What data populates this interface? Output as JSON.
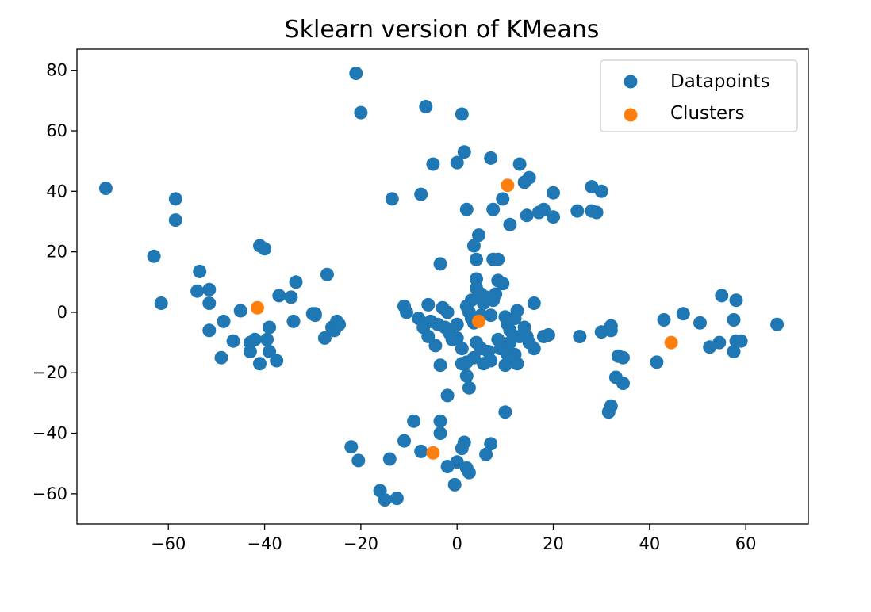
{
  "chart_data": {
    "type": "scatter",
    "title": "Sklearn version of KMeans",
    "xlabel": "",
    "ylabel": "",
    "xlim": [
      -79,
      73
    ],
    "ylim": [
      -70,
      87
    ],
    "xticks": [
      -60,
      -40,
      -20,
      0,
      20,
      40,
      60
    ],
    "yticks": [
      -60,
      -40,
      -20,
      0,
      20,
      40,
      60,
      80
    ],
    "xtick_labels": [
      "−60",
      "−40",
      "−20",
      "0",
      "20",
      "40",
      "60"
    ],
    "ytick_labels": [
      "−60",
      "−40",
      "−20",
      "0",
      "20",
      "40",
      "60",
      "80"
    ],
    "grid": false,
    "legend": {
      "position": "top-right",
      "entries": [
        "Datapoints",
        "Clusters"
      ]
    },
    "series": [
      {
        "name": "Datapoints",
        "color": "#1f77b4",
        "points": [
          [
            -21,
            79
          ],
          [
            -20,
            66
          ],
          [
            -6.5,
            68
          ],
          [
            1,
            65.5
          ],
          [
            1.5,
            53
          ],
          [
            7,
            51
          ],
          [
            -5,
            49
          ],
          [
            0,
            49.5
          ],
          [
            13,
            49
          ],
          [
            15,
            44.5
          ],
          [
            14,
            43
          ],
          [
            20,
            39.5
          ],
          [
            28,
            41.5
          ],
          [
            30,
            40
          ],
          [
            25,
            33.5
          ],
          [
            28,
            33.5
          ],
          [
            29,
            33
          ],
          [
            18,
            34
          ],
          [
            17,
            33
          ],
          [
            14.5,
            32
          ],
          [
            20,
            31.5
          ],
          [
            11,
            29
          ],
          [
            7.5,
            34
          ],
          [
            2,
            34
          ],
          [
            9.5,
            37.5
          ],
          [
            -13.5,
            37.5
          ],
          [
            -7.5,
            39
          ],
          [
            -73,
            41
          ],
          [
            -58.5,
            37.5
          ],
          [
            -58.5,
            30.5
          ],
          [
            -63,
            18.5
          ],
          [
            -61.5,
            3
          ],
          [
            -41,
            22
          ],
          [
            -40,
            21
          ],
          [
            -53.5,
            13.5
          ],
          [
            -51.5,
            7.5
          ],
          [
            -54,
            7
          ],
          [
            -51.5,
            3
          ],
          [
            -51.5,
            -6
          ],
          [
            -48.5,
            -3
          ],
          [
            -46.5,
            -9.5
          ],
          [
            -49,
            -15
          ],
          [
            -45,
            0.5
          ],
          [
            -43,
            -10
          ],
          [
            -42,
            -9
          ],
          [
            -43,
            -13
          ],
          [
            -41,
            -17
          ],
          [
            -39.5,
            -9
          ],
          [
            -39,
            -13
          ],
          [
            -39,
            -5
          ],
          [
            -37.5,
            -16
          ],
          [
            -37,
            5.5
          ],
          [
            -34.5,
            5
          ],
          [
            -33.5,
            10
          ],
          [
            -34,
            -3
          ],
          [
            -29.5,
            -0.5
          ],
          [
            -30,
            -0.5
          ],
          [
            -29.5,
            -1
          ],
          [
            -27.5,
            -8.5
          ],
          [
            -27,
            12.5
          ],
          [
            -26,
            -5
          ],
          [
            -25,
            -3
          ],
          [
            -25.5,
            -6
          ],
          [
            -24.5,
            -4
          ],
          [
            -11,
            2
          ],
          [
            -10.5,
            0
          ],
          [
            -8,
            -2
          ],
          [
            -7,
            -5
          ],
          [
            -6,
            2.5
          ],
          [
            -6,
            -8
          ],
          [
            -5.5,
            -3
          ],
          [
            -4.5,
            -11
          ],
          [
            -4,
            -4
          ],
          [
            -3,
            1.5
          ],
          [
            -2.5,
            -5
          ],
          [
            -2,
            0
          ],
          [
            -1.5,
            -7
          ],
          [
            -1,
            -9
          ],
          [
            0,
            -8.5
          ],
          [
            0,
            -4
          ],
          [
            -3.5,
            16
          ],
          [
            3.5,
            22
          ],
          [
            4.5,
            25.5
          ],
          [
            4,
            17.5
          ],
          [
            7.5,
            17.5
          ],
          [
            8.5,
            17.5
          ],
          [
            4,
            11
          ],
          [
            4,
            8
          ],
          [
            5,
            6
          ],
          [
            6,
            5
          ],
          [
            3,
            4
          ],
          [
            2,
            2
          ],
          [
            2.5,
            0
          ],
          [
            3,
            -2
          ],
          [
            3.5,
            -3.5
          ],
          [
            5,
            -1
          ],
          [
            5.5,
            3
          ],
          [
            7.5,
            4
          ],
          [
            7,
            -1
          ],
          [
            8,
            6
          ],
          [
            8.5,
            10.5
          ],
          [
            9.5,
            9.5
          ],
          [
            10,
            -1.5
          ],
          [
            10.5,
            -4
          ],
          [
            11,
            -6
          ],
          [
            12,
            -2
          ],
          [
            12.5,
            0.5
          ],
          [
            11,
            -10
          ],
          [
            12,
            -14
          ],
          [
            13,
            -8
          ],
          [
            14,
            -5
          ],
          [
            14.5,
            -8
          ],
          [
            15,
            -10
          ],
          [
            16,
            -12
          ],
          [
            16,
            3
          ],
          [
            18,
            -8
          ],
          [
            19,
            -7.5
          ],
          [
            8.5,
            -9
          ],
          [
            9,
            -12
          ],
          [
            10,
            -17.5
          ],
          [
            10.5,
            -14
          ],
          [
            11.5,
            -16
          ],
          [
            12.5,
            -17
          ],
          [
            7,
            -16
          ],
          [
            6.5,
            -13
          ],
          [
            5,
            -12
          ],
          [
            5.5,
            -17
          ],
          [
            4,
            -10
          ],
          [
            3.5,
            -15
          ],
          [
            2,
            -16.5
          ],
          [
            1,
            -12
          ],
          [
            1,
            -17
          ],
          [
            2,
            -21
          ],
          [
            2.5,
            -25
          ],
          [
            -3.5,
            -17.5
          ],
          [
            -2,
            -27.5
          ],
          [
            10,
            -33
          ],
          [
            25.5,
            -8
          ],
          [
            30,
            -6.5
          ],
          [
            32,
            -4.5
          ],
          [
            32,
            -6
          ],
          [
            33.5,
            -14.5
          ],
          [
            34.5,
            -15
          ],
          [
            33,
            -21.5
          ],
          [
            34.5,
            -23.5
          ],
          [
            32,
            -31
          ],
          [
            31.5,
            -33
          ],
          [
            41.5,
            -16.5
          ],
          [
            43,
            -2.5
          ],
          [
            47,
            -0.5
          ],
          [
            50.5,
            -3.5
          ],
          [
            52.5,
            -11.5
          ],
          [
            54.5,
            -10
          ],
          [
            55,
            5.5
          ],
          [
            57.5,
            -13
          ],
          [
            57.5,
            -2.5
          ],
          [
            58,
            4
          ],
          [
            59,
            -9.5
          ],
          [
            58,
            -9.5
          ],
          [
            66.5,
            -4
          ],
          [
            -3.5,
            -36
          ],
          [
            -3.5,
            -40
          ],
          [
            -9,
            -36
          ],
          [
            -11,
            -42.5
          ],
          [
            -7.5,
            -46
          ],
          [
            -14,
            -48.5
          ],
          [
            -22,
            -44.5
          ],
          [
            -20.5,
            -49
          ],
          [
            -16,
            -59
          ],
          [
            -15,
            -62
          ],
          [
            -12.5,
            -61.5
          ],
          [
            -2,
            -51
          ],
          [
            0,
            -49.5
          ],
          [
            1.5,
            -43
          ],
          [
            1,
            -45
          ],
          [
            2,
            -51.5
          ],
          [
            2.5,
            -53
          ],
          [
            6,
            -47
          ],
          [
            7,
            -43.5
          ],
          [
            -0.5,
            -57
          ]
        ]
      },
      {
        "name": "Clusters",
        "color": "#ff7f0e",
        "points": [
          [
            10.5,
            42
          ],
          [
            -41.5,
            1.5
          ],
          [
            4.5,
            -3
          ],
          [
            44.5,
            -10
          ],
          [
            -5,
            -46.5
          ]
        ]
      }
    ]
  }
}
